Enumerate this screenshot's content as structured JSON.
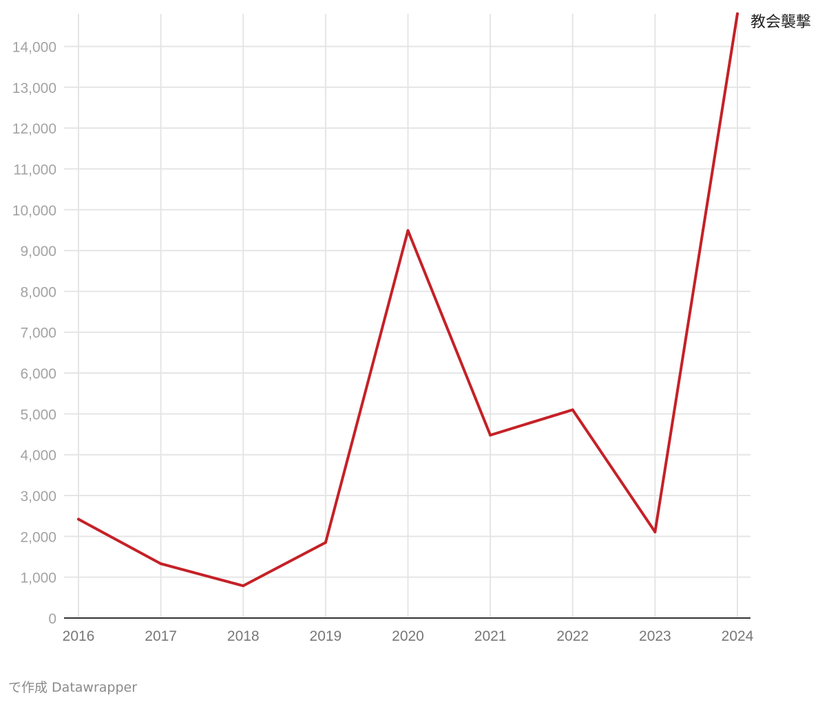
{
  "chart_data": {
    "type": "line",
    "title": "",
    "xlabel": "",
    "ylabel": "",
    "x": [
      2016,
      2017,
      2018,
      2019,
      2020,
      2021,
      2022,
      2023,
      2024
    ],
    "x_tick_labels": [
      "2016",
      "2017",
      "2018",
      "2019",
      "2020",
      "2021",
      "2022",
      "2023",
      "2024"
    ],
    "y_ticks": [
      0,
      1000,
      2000,
      3000,
      4000,
      5000,
      6000,
      7000,
      8000,
      9000,
      10000,
      11000,
      12000,
      13000,
      14000
    ],
    "y_tick_labels": [
      "0",
      "1,000",
      "2,000",
      "3,000",
      "4,000",
      "5,000",
      "6,000",
      "7,000",
      "8,000",
      "9,000",
      "10,000",
      "11,000",
      "12,000",
      "13,000",
      "14,000"
    ],
    "ylim": [
      0,
      14800
    ],
    "grid": true,
    "series": [
      {
        "name": "教会襲撃",
        "color": "#c42127",
        "values": [
          2420,
          1330,
          790,
          1850,
          9490,
          4480,
          5100,
          2110,
          14800
        ]
      }
    ],
    "legend": "inline label at end of line"
  },
  "footer": {
    "credit": "で作成 Datawrapper"
  }
}
